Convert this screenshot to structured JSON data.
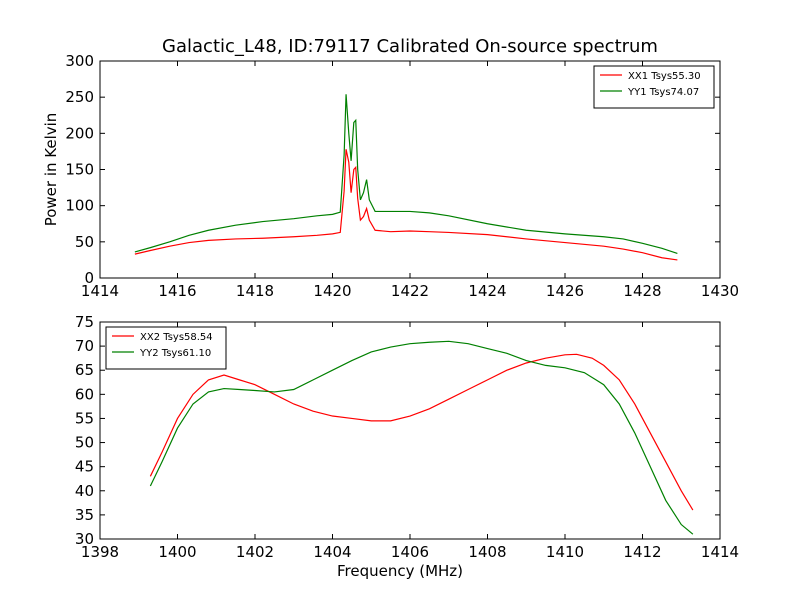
{
  "title": "Galactic_L48, ID:79117 Calibrated On-source spectrum",
  "chart_data": [
    {
      "type": "line",
      "ylabel": "Power in Kelvin",
      "xlabel": "",
      "xlim": [
        1414,
        1430
      ],
      "ylim": [
        0,
        300
      ],
      "xticks": [
        "1414",
        "1416",
        "1418",
        "1420",
        "1422",
        "1424",
        "1426",
        "1428",
        "1430"
      ],
      "yticks": [
        "0",
        "50",
        "100",
        "150",
        "200",
        "250",
        "300"
      ],
      "legend_position": "top-right",
      "series": [
        {
          "name": "XX1 Tsys55.30",
          "color": "#ff0000",
          "x": [
            1414.9,
            1415.3,
            1415.8,
            1416.3,
            1416.8,
            1417.5,
            1418.2,
            1419.0,
            1419.6,
            1420.0,
            1420.2,
            1420.3,
            1420.35,
            1420.42,
            1420.48,
            1420.55,
            1420.6,
            1420.65,
            1420.72,
            1420.8,
            1420.88,
            1420.95,
            1421.1,
            1421.5,
            1422.0,
            1422.5,
            1423.0,
            1424.0,
            1425.0,
            1426.0,
            1427.0,
            1427.5,
            1428.0,
            1428.5,
            1428.9
          ],
          "y": [
            33,
            38,
            44,
            49,
            52,
            54,
            55,
            57,
            59,
            61,
            63,
            120,
            178,
            160,
            118,
            150,
            153,
            110,
            80,
            85,
            96,
            80,
            66,
            64,
            65,
            64,
            63,
            60,
            54,
            49,
            44,
            40,
            35,
            28,
            25
          ]
        },
        {
          "name": "YY1 Tsys74.07",
          "color": "#008000",
          "x": [
            1414.9,
            1415.3,
            1415.8,
            1416.3,
            1416.8,
            1417.5,
            1418.2,
            1419.0,
            1419.6,
            1420.0,
            1420.2,
            1420.3,
            1420.35,
            1420.42,
            1420.48,
            1420.55,
            1420.6,
            1420.65,
            1420.72,
            1420.8,
            1420.88,
            1420.95,
            1421.1,
            1421.5,
            1422.0,
            1422.5,
            1423.0,
            1424.0,
            1425.0,
            1426.0,
            1427.0,
            1427.5,
            1428.0,
            1428.5,
            1428.9
          ],
          "y": [
            36,
            42,
            50,
            59,
            66,
            73,
            78,
            82,
            86,
            88,
            91,
            170,
            254,
            200,
            162,
            215,
            218,
            150,
            108,
            118,
            136,
            108,
            92,
            92,
            92,
            90,
            86,
            75,
            66,
            61,
            57,
            54,
            48,
            41,
            34
          ]
        }
      ]
    },
    {
      "type": "line",
      "ylabel": "",
      "xlabel": "Frequency (MHz)",
      "xlim": [
        1398,
        1414
      ],
      "ylim": [
        30,
        75
      ],
      "xticks": [
        "1398",
        "1400",
        "1402",
        "1404",
        "1406",
        "1408",
        "1410",
        "1412",
        "1414"
      ],
      "yticks": [
        "30",
        "35",
        "40",
        "45",
        "50",
        "55",
        "60",
        "65",
        "70",
        "75"
      ],
      "legend_position": "top-left",
      "series": [
        {
          "name": "XX2 Tsys58.54",
          "color": "#ff0000",
          "x": [
            1399.3,
            1399.6,
            1400.0,
            1400.4,
            1400.8,
            1401.2,
            1401.6,
            1402.0,
            1402.5,
            1403.0,
            1403.5,
            1404.0,
            1404.5,
            1405.0,
            1405.5,
            1406.0,
            1406.5,
            1407.0,
            1407.5,
            1408.0,
            1408.5,
            1409.0,
            1409.5,
            1410.0,
            1410.3,
            1410.7,
            1411.0,
            1411.4,
            1411.8,
            1412.2,
            1412.6,
            1413.0,
            1413.3
          ],
          "y": [
            43,
            48,
            55,
            60,
            63,
            64,
            63,
            62,
            60,
            58,
            56.5,
            55.5,
            55,
            54.5,
            54.5,
            55.5,
            57,
            59,
            61,
            63,
            65,
            66.5,
            67.5,
            68.2,
            68.3,
            67.5,
            66,
            63,
            58,
            52,
            46,
            40,
            36
          ]
        },
        {
          "name": "YY2 Tsys61.10",
          "color": "#008000",
          "x": [
            1399.3,
            1399.6,
            1400.0,
            1400.4,
            1400.8,
            1401.2,
            1401.6,
            1402.0,
            1402.5,
            1403.0,
            1403.5,
            1404.0,
            1404.5,
            1405.0,
            1405.5,
            1406.0,
            1406.5,
            1407.0,
            1407.5,
            1408.0,
            1408.5,
            1409.0,
            1409.5,
            1410.0,
            1410.5,
            1411.0,
            1411.4,
            1411.8,
            1412.2,
            1412.6,
            1413.0,
            1413.3
          ],
          "y": [
            41,
            46,
            53,
            58,
            60.5,
            61.2,
            61,
            60.8,
            60.5,
            61,
            63,
            65,
            67,
            68.8,
            69.8,
            70.5,
            70.8,
            71,
            70.5,
            69.5,
            68.5,
            67,
            66,
            65.5,
            64.5,
            62,
            58,
            52,
            45,
            38,
            33,
            31
          ]
        }
      ]
    }
  ]
}
